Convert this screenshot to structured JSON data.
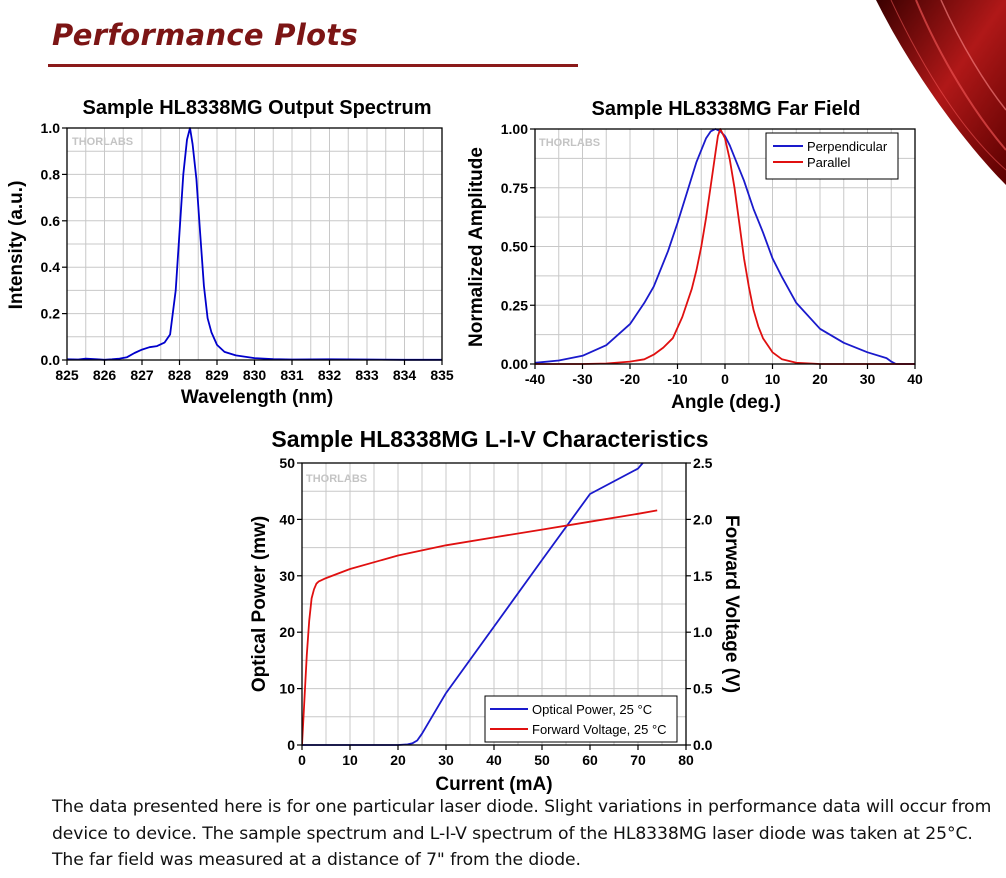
{
  "page": {
    "title": "Performance Plots",
    "description": "The data presented here is for one particular laser diode. Slight variations in performance data will occur from device to device. The sample spectrum and L-I-V spectrum of the HL8338MG laser diode was taken at 25°C. The far field was measured at a distance of 7\" from the diode.",
    "accent_color": "#7c1515"
  },
  "chart_data": [
    {
      "type": "line",
      "title": "Sample HL8338MG Output Spectrum",
      "xlabel": "Wavelength (nm)",
      "ylabel": "Intensity (a.u.)",
      "watermark": "THORLABS",
      "xlim": [
        825,
        835
      ],
      "ylim": [
        0,
        1.0
      ],
      "xticks": [
        825,
        826,
        827,
        828,
        829,
        830,
        831,
        832,
        833,
        834,
        835
      ],
      "yticks": [
        0.0,
        0.2,
        0.4,
        0.6,
        0.8,
        1.0
      ],
      "ytick_labels": [
        "0.0",
        "0.2",
        "0.4",
        "0.6",
        "0.8",
        "1.0"
      ],
      "series": [
        {
          "name": "Spectrum",
          "color": "#0000cc",
          "x": [
            825,
            825.3,
            825.5,
            825.8,
            826,
            826.2,
            826.4,
            826.6,
            826.8,
            827,
            827.2,
            827.4,
            827.6,
            827.75,
            827.9,
            828.0,
            828.1,
            828.2,
            828.28,
            828.35,
            828.45,
            828.55,
            828.65,
            828.75,
            828.85,
            829.0,
            829.2,
            829.5,
            830,
            830.5,
            831,
            832,
            833,
            834,
            835
          ],
          "y": [
            0.003,
            0.002,
            0.006,
            0.003,
            0.001,
            0.003,
            0.006,
            0.012,
            0.03,
            0.045,
            0.055,
            0.06,
            0.075,
            0.11,
            0.3,
            0.55,
            0.8,
            0.95,
            1.0,
            0.93,
            0.78,
            0.55,
            0.32,
            0.18,
            0.12,
            0.065,
            0.035,
            0.02,
            0.008,
            0.004,
            0.002,
            0.003,
            0.002,
            0.001,
            0.001
          ]
        }
      ]
    },
    {
      "type": "line",
      "title": "Sample HL8338MG Far Field",
      "xlabel": "Angle (deg.)",
      "ylabel": "Normalized Amplitude",
      "watermark": "THORLABS",
      "xlim": [
        -40,
        40
      ],
      "ylim": [
        0,
        1.0
      ],
      "xticks": [
        -40,
        -30,
        -20,
        -10,
        0,
        10,
        20,
        30,
        40
      ],
      "yticks": [
        0,
        0.25,
        0.5,
        0.75,
        1.0
      ],
      "ytick_labels": [
        "0.00",
        "0.25",
        "0.50",
        "0.75",
        "1.00"
      ],
      "legend": "top-right",
      "series": [
        {
          "name": "Perpendicular",
          "color": "#1a1acc",
          "x": [
            -40,
            -35,
            -30,
            -25,
            -20,
            -17,
            -15,
            -12,
            -10,
            -8,
            -6,
            -4,
            -3,
            -2,
            -1,
            0,
            1,
            2,
            4,
            6,
            8,
            10,
            12,
            15,
            20,
            25,
            30,
            34,
            35,
            36,
            40
          ],
          "y": [
            0.005,
            0.015,
            0.035,
            0.08,
            0.17,
            0.26,
            0.33,
            0.48,
            0.6,
            0.73,
            0.86,
            0.96,
            0.99,
            1.0,
            0.99,
            0.97,
            0.93,
            0.88,
            0.78,
            0.66,
            0.56,
            0.45,
            0.37,
            0.26,
            0.15,
            0.09,
            0.05,
            0.025,
            0.01,
            0.0,
            0.0
          ]
        },
        {
          "name": "Parallel",
          "color": "#e01010",
          "x": [
            -40,
            -30,
            -25,
            -20,
            -17,
            -15,
            -13,
            -11,
            -9,
            -7,
            -6,
            -5,
            -4,
            -3,
            -2,
            -1.5,
            -1,
            0,
            1,
            2,
            3,
            4,
            5,
            6,
            7,
            8,
            10,
            12,
            15,
            20,
            25,
            30,
            40
          ],
          "y": [
            0.0,
            0.0,
            0.002,
            0.01,
            0.02,
            0.04,
            0.07,
            0.11,
            0.2,
            0.32,
            0.4,
            0.5,
            0.62,
            0.76,
            0.9,
            0.97,
            1.0,
            0.96,
            0.87,
            0.75,
            0.6,
            0.45,
            0.33,
            0.23,
            0.16,
            0.11,
            0.05,
            0.02,
            0.005,
            0.0,
            0.0,
            0.0,
            0.0
          ]
        }
      ]
    },
    {
      "type": "line",
      "title": "Sample HL8338MG L-I-V Characteristics",
      "xlabel": "Current (mA)",
      "ylabel": "Optical Power (mw)",
      "y2label": "Forward Voltage (V)",
      "watermark": "THORLABS",
      "xlim": [
        0,
        80
      ],
      "ylim": [
        0,
        50
      ],
      "y2lim": [
        0,
        2.5
      ],
      "xticks": [
        0,
        10,
        20,
        30,
        40,
        50,
        60,
        70,
        80
      ],
      "yticks": [
        0,
        10,
        20,
        30,
        40,
        50
      ],
      "ytick_labels": [
        "0",
        "10",
        "20",
        "30",
        "40",
        "50"
      ],
      "y2ticks": [
        0,
        0.5,
        1.0,
        1.5,
        2.0,
        2.5
      ],
      "y2tick_labels": [
        "0.0",
        "0.5",
        "1.0",
        "1.5",
        "2.0",
        "2.5"
      ],
      "legend": "bottom-right",
      "series": [
        {
          "name": "Optical Power, 25 °C",
          "axis": "left",
          "color": "#1a1acc",
          "x": [
            0,
            10,
            20,
            22,
            23,
            24,
            25,
            30,
            40,
            50,
            60,
            70,
            71
          ],
          "y": [
            0,
            0,
            0,
            0.1,
            0.3,
            0.8,
            2.0,
            9.2,
            21.0,
            32.8,
            44.5,
            49.0,
            50.0
          ]
        },
        {
          "name": "Forward Voltage, 25 °C",
          "axis": "right",
          "color": "#e01010",
          "x": [
            0,
            0.5,
            1,
            1.5,
            2,
            2.5,
            3,
            3.5,
            5,
            10,
            20,
            30,
            40,
            50,
            60,
            70,
            74
          ],
          "y": [
            0,
            0.4,
            0.8,
            1.1,
            1.3,
            1.38,
            1.43,
            1.45,
            1.48,
            1.56,
            1.68,
            1.77,
            1.84,
            1.91,
            1.98,
            2.05,
            2.08
          ]
        }
      ]
    }
  ]
}
